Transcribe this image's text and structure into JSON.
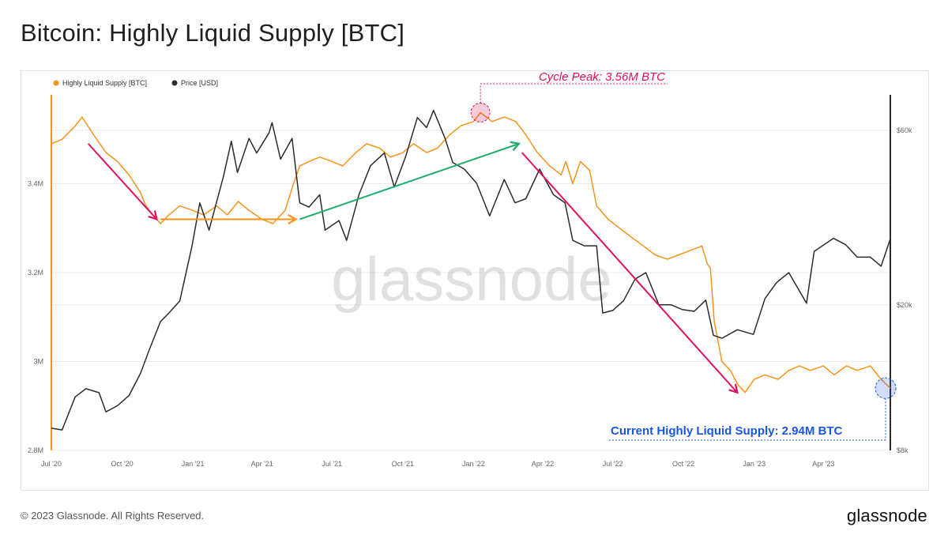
{
  "page": {
    "title": "Bitcoin: Highly Liquid Supply [BTC]",
    "footer": "© 2023 Glassnode. All Rights Reserved.",
    "brand": "glassnode",
    "watermark": "glassnode"
  },
  "chart_data": {
    "type": "line",
    "legend": [
      {
        "name": "Highly Liquid Supply [BTC]",
        "color": "#f7931a"
      },
      {
        "name": "Price [USD]",
        "color": "#2b2b2b"
      }
    ],
    "legend_position": "top-left",
    "grid": true,
    "x_range": [
      "2020-07-01",
      "2023-06-27"
    ],
    "x_ticks": [
      {
        "date": "2020-07-01",
        "label": "Jul '20"
      },
      {
        "date": "2020-10-01",
        "label": "Oct '20"
      },
      {
        "date": "2021-01-01",
        "label": "Jan '21"
      },
      {
        "date": "2021-04-01",
        "label": "Apr '21"
      },
      {
        "date": "2021-07-01",
        "label": "Jul '21"
      },
      {
        "date": "2021-10-01",
        "label": "Oct '21"
      },
      {
        "date": "2022-01-01",
        "label": "Jan '22"
      },
      {
        "date": "2022-04-01",
        "label": "Apr '22"
      },
      {
        "date": "2022-07-01",
        "label": "Jul '22"
      },
      {
        "date": "2022-10-01",
        "label": "Oct '22"
      },
      {
        "date": "2023-01-01",
        "label": "Jan '23"
      },
      {
        "date": "2023-04-01",
        "label": "Apr '23"
      }
    ],
    "y_left": {
      "range": [
        2800000,
        3600000
      ],
      "ticks": [
        {
          "value": 2800000,
          "label": "2.8M"
        },
        {
          "value": 3000000,
          "label": "3M"
        },
        {
          "value": 3200000,
          "label": "3.2M"
        },
        {
          "value": 3400000,
          "label": "3.4M"
        }
      ]
    },
    "y_right": {
      "scale": "log",
      "range": [
        8000,
        75000
      ],
      "ticks": [
        {
          "value": 8000,
          "label": "$8k"
        },
        {
          "value": 20000,
          "label": "$20k"
        },
        {
          "value": 60000,
          "label": "$60k"
        }
      ]
    },
    "series": [
      {
        "name": "Highly Liquid Supply [BTC]",
        "color": "#f7931a",
        "axis": "left",
        "points": [
          [
            "2020-07-01",
            3490000
          ],
          [
            "2020-07-15",
            3500000
          ],
          [
            "2020-08-01",
            3530000
          ],
          [
            "2020-08-10",
            3550000
          ],
          [
            "2020-08-25",
            3510000
          ],
          [
            "2020-09-10",
            3470000
          ],
          [
            "2020-09-25",
            3450000
          ],
          [
            "2020-10-10",
            3420000
          ],
          [
            "2020-10-25",
            3380000
          ],
          [
            "2020-11-01",
            3350000
          ],
          [
            "2020-11-10",
            3330000
          ],
          [
            "2020-11-20",
            3310000
          ],
          [
            "2020-12-01",
            3330000
          ],
          [
            "2020-12-15",
            3350000
          ],
          [
            "2021-01-01",
            3340000
          ],
          [
            "2021-01-15",
            3330000
          ],
          [
            "2021-02-01",
            3350000
          ],
          [
            "2021-02-15",
            3330000
          ],
          [
            "2021-03-01",
            3360000
          ],
          [
            "2021-03-15",
            3340000
          ],
          [
            "2021-04-01",
            3320000
          ],
          [
            "2021-04-15",
            3310000
          ],
          [
            "2021-05-01",
            3340000
          ],
          [
            "2021-05-10",
            3390000
          ],
          [
            "2021-05-20",
            3440000
          ],
          [
            "2021-06-01",
            3450000
          ],
          [
            "2021-06-15",
            3460000
          ],
          [
            "2021-07-01",
            3450000
          ],
          [
            "2021-07-15",
            3440000
          ],
          [
            "2021-08-01",
            3470000
          ],
          [
            "2021-08-15",
            3490000
          ],
          [
            "2021-09-01",
            3480000
          ],
          [
            "2021-09-15",
            3460000
          ],
          [
            "2021-10-01",
            3470000
          ],
          [
            "2021-10-15",
            3490000
          ],
          [
            "2021-11-01",
            3470000
          ],
          [
            "2021-11-15",
            3480000
          ],
          [
            "2021-12-01",
            3510000
          ],
          [
            "2021-12-15",
            3530000
          ],
          [
            "2022-01-01",
            3540000
          ],
          [
            "2022-01-10",
            3560000
          ],
          [
            "2022-01-25",
            3540000
          ],
          [
            "2022-02-10",
            3550000
          ],
          [
            "2022-02-25",
            3540000
          ],
          [
            "2022-03-10",
            3510000
          ],
          [
            "2022-03-25",
            3470000
          ],
          [
            "2022-04-10",
            3440000
          ],
          [
            "2022-04-25",
            3420000
          ],
          [
            "2022-05-01",
            3450000
          ],
          [
            "2022-05-10",
            3400000
          ],
          [
            "2022-05-20",
            3450000
          ],
          [
            "2022-06-01",
            3430000
          ],
          [
            "2022-06-10",
            3350000
          ],
          [
            "2022-06-25",
            3320000
          ],
          [
            "2022-07-10",
            3300000
          ],
          [
            "2022-07-25",
            3280000
          ],
          [
            "2022-08-10",
            3260000
          ],
          [
            "2022-08-25",
            3240000
          ],
          [
            "2022-09-10",
            3230000
          ],
          [
            "2022-09-25",
            3240000
          ],
          [
            "2022-10-10",
            3250000
          ],
          [
            "2022-10-25",
            3260000
          ],
          [
            "2022-11-01",
            3220000
          ],
          [
            "2022-11-05",
            3210000
          ],
          [
            "2022-11-10",
            3090000
          ],
          [
            "2022-11-20",
            3000000
          ],
          [
            "2022-12-01",
            2980000
          ],
          [
            "2022-12-10",
            2950000
          ],
          [
            "2022-12-20",
            2930000
          ],
          [
            "2023-01-01",
            2960000
          ],
          [
            "2023-01-15",
            2970000
          ],
          [
            "2023-02-01",
            2960000
          ],
          [
            "2023-02-15",
            2980000
          ],
          [
            "2023-03-01",
            2990000
          ],
          [
            "2023-03-15",
            2980000
          ],
          [
            "2023-04-01",
            2990000
          ],
          [
            "2023-04-15",
            2970000
          ],
          [
            "2023-05-01",
            2990000
          ],
          [
            "2023-05-15",
            2980000
          ],
          [
            "2023-06-01",
            2990000
          ],
          [
            "2023-06-15",
            2960000
          ],
          [
            "2023-06-27",
            2940000
          ]
        ]
      },
      {
        "name": "Price [USD]",
        "color": "#2b2b2b",
        "axis": "right",
        "points": [
          [
            "2020-07-01",
            9200
          ],
          [
            "2020-07-15",
            9100
          ],
          [
            "2020-08-01",
            11200
          ],
          [
            "2020-08-15",
            11800
          ],
          [
            "2020-09-01",
            11500
          ],
          [
            "2020-09-10",
            10200
          ],
          [
            "2020-09-25",
            10600
          ],
          [
            "2020-10-10",
            11300
          ],
          [
            "2020-10-25",
            13000
          ],
          [
            "2020-11-05",
            15000
          ],
          [
            "2020-11-20",
            18000
          ],
          [
            "2020-12-01",
            19000
          ],
          [
            "2020-12-15",
            20500
          ],
          [
            "2020-12-31",
            29000
          ],
          [
            "2021-01-10",
            38000
          ],
          [
            "2021-01-22",
            32000
          ],
          [
            "2021-02-10",
            45000
          ],
          [
            "2021-02-20",
            56000
          ],
          [
            "2021-02-28",
            46000
          ],
          [
            "2021-03-15",
            57000
          ],
          [
            "2021-03-25",
            52000
          ],
          [
            "2021-04-10",
            59000
          ],
          [
            "2021-04-14",
            63000
          ],
          [
            "2021-04-25",
            50000
          ],
          [
            "2021-05-10",
            57000
          ],
          [
            "2021-05-20",
            38000
          ],
          [
            "2021-06-01",
            37000
          ],
          [
            "2021-06-15",
            40000
          ],
          [
            "2021-06-22",
            32000
          ],
          [
            "2021-07-10",
            34000
          ],
          [
            "2021-07-20",
            30000
          ],
          [
            "2021-08-05",
            40000
          ],
          [
            "2021-08-20",
            48000
          ],
          [
            "2021-09-07",
            52000
          ],
          [
            "2021-09-20",
            42000
          ],
          [
            "2021-10-05",
            51000
          ],
          [
            "2021-10-20",
            65000
          ],
          [
            "2021-11-01",
            61000
          ],
          [
            "2021-11-10",
            68000
          ],
          [
            "2021-11-25",
            57000
          ],
          [
            "2021-12-05",
            49000
          ],
          [
            "2021-12-20",
            47000
          ],
          [
            "2022-01-05",
            43000
          ],
          [
            "2022-01-22",
            35000
          ],
          [
            "2022-02-10",
            44000
          ],
          [
            "2022-02-24",
            38000
          ],
          [
            "2022-03-10",
            39000
          ],
          [
            "2022-03-28",
            47000
          ],
          [
            "2022-04-15",
            40000
          ],
          [
            "2022-04-30",
            38000
          ],
          [
            "2022-05-10",
            30000
          ],
          [
            "2022-05-25",
            29000
          ],
          [
            "2022-06-10",
            29000
          ],
          [
            "2022-06-18",
            19000
          ],
          [
            "2022-07-01",
            19300
          ],
          [
            "2022-07-15",
            20500
          ],
          [
            "2022-07-30",
            23500
          ],
          [
            "2022-08-13",
            24500
          ],
          [
            "2022-08-30",
            20000
          ],
          [
            "2022-09-15",
            20000
          ],
          [
            "2022-09-30",
            19400
          ],
          [
            "2022-10-15",
            19200
          ],
          [
            "2022-10-30",
            20600
          ],
          [
            "2022-11-09",
            16500
          ],
          [
            "2022-11-20",
            16200
          ],
          [
            "2022-12-10",
            17100
          ],
          [
            "2022-12-31",
            16600
          ],
          [
            "2023-01-15",
            20800
          ],
          [
            "2023-01-30",
            23000
          ],
          [
            "2023-02-15",
            24500
          ],
          [
            "2023-03-10",
            20200
          ],
          [
            "2023-03-20",
            28000
          ],
          [
            "2023-04-14",
            30400
          ],
          [
            "2023-04-30",
            29200
          ],
          [
            "2023-05-15",
            27000
          ],
          [
            "2023-06-01",
            27000
          ],
          [
            "2023-06-15",
            25500
          ],
          [
            "2023-06-27",
            30300
          ]
        ]
      }
    ],
    "annotations": {
      "peak_label": "Cycle Peak: 3.56M BTC",
      "current_label": "Current Highly Liquid Supply: 2.94M BTC",
      "peak_point": [
        "2022-01-10",
        3560000
      ],
      "current_point": [
        "2023-06-27",
        2940000
      ]
    },
    "trend_arrows": [
      {
        "color": "#e0105e",
        "from": [
          "2020-08-18",
          3490000
        ],
        "to": [
          "2020-11-15",
          3320000
        ]
      },
      {
        "color": "#f7931a",
        "from": [
          "2020-11-20",
          3320000
        ],
        "to": [
          "2021-05-15",
          3320000
        ]
      },
      {
        "color": "#1fae6a",
        "from": [
          "2021-05-20",
          3320000
        ],
        "to": [
          "2022-03-01",
          3490000
        ]
      },
      {
        "color": "#e0105e",
        "from": [
          "2022-03-05",
          3470000
        ],
        "to": [
          "2022-12-10",
          2930000
        ]
      }
    ],
    "colors": {
      "accent_peak": "#e0105e",
      "accent_current": "#1a56db"
    }
  }
}
